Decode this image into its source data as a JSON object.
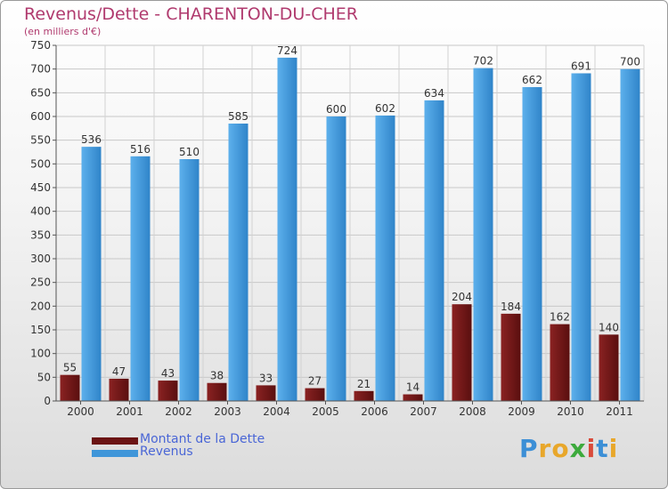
{
  "chart_data": {
    "type": "bar",
    "title": "Revenus/Dette - CHARENTON-DU-CHER",
    "subtitle": "(en milliers d'€)",
    "categories": [
      "2000",
      "2001",
      "2002",
      "2003",
      "2004",
      "2005",
      "2006",
      "2007",
      "2008",
      "2009",
      "2010",
      "2011"
    ],
    "series": [
      {
        "name": "Montant de la Dette",
        "color": "#6b1414",
        "values": [
          55,
          47,
          43,
          38,
          33,
          27,
          21,
          14,
          204,
          184,
          162,
          140
        ]
      },
      {
        "name": "Revenus",
        "color": "#3f96d9",
        "values": [
          536,
          516,
          510,
          585,
          724,
          600,
          602,
          634,
          702,
          662,
          691,
          700
        ]
      }
    ],
    "ylim": [
      0,
      750
    ],
    "yticks": [
      0,
      50,
      100,
      150,
      200,
      250,
      300,
      350,
      400,
      450,
      500,
      550,
      600,
      650,
      700,
      750
    ],
    "grid": true,
    "legend_position": "bottom-left"
  },
  "brand": {
    "letters": [
      "P",
      "r",
      "o",
      "x",
      "i",
      "t",
      "i"
    ],
    "colors": [
      "#3c8fd6",
      "#e8a72b",
      "#e8a72b",
      "#3caa3c",
      "#d94a3a",
      "#3c8fd6",
      "#e8a72b"
    ]
  }
}
